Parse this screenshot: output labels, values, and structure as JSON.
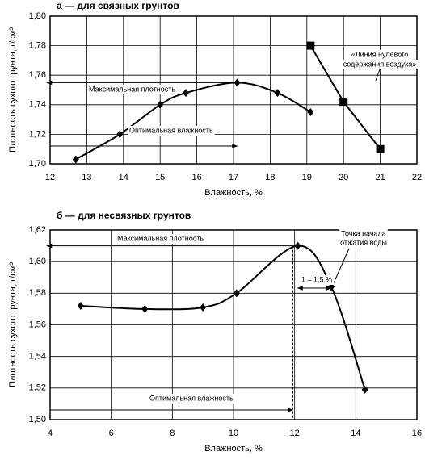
{
  "chart_data": [
    {
      "type": "line",
      "title": "а — для связных грунтов",
      "x_label": "Влажность, %",
      "y_label": "Плотность сухого грунта, г/см³",
      "xlim": [
        12,
        22
      ],
      "xticks": [
        12,
        13,
        14,
        15,
        16,
        17,
        18,
        19,
        20,
        21,
        22
      ],
      "ylim": [
        1.7,
        1.8
      ],
      "yticks": [
        {
          "value": 1.7,
          "label": "1,70"
        },
        {
          "value": 1.72,
          "label": "1,72"
        },
        {
          "value": 1.74,
          "label": "1,74"
        },
        {
          "value": 1.76,
          "label": "1,76"
        },
        {
          "value": 1.78,
          "label": "1,78"
        },
        {
          "value": 1.8,
          "label": "1,80"
        }
      ],
      "grid": true,
      "series": [
        {
          "color": "#000000",
          "marker": "diamond",
          "smooth": true,
          "x": [
            12.7,
            13.9,
            15,
            15.7,
            17.1,
            18.2,
            19.1
          ],
          "values": [
            1.703,
            1.72,
            1.74,
            1.748,
            1.755,
            1.748,
            1.735
          ]
        },
        {
          "color": "#000000",
          "marker": "square",
          "smooth": false,
          "x": [
            19.1,
            20,
            21
          ],
          "values": [
            1.78,
            1.742,
            1.71
          ]
        }
      ],
      "annotations": [
        "Максимальная плотность",
        "Оптимальная влажность",
        "«Линия нулевого",
        "содержания воздуха»"
      ]
    },
    {
      "type": "line",
      "title": "б — для несвязных грунтов",
      "x_label": "Влажность, %",
      "y_label": "Плотность сухого грунта, г/см³",
      "xlim": [
        4,
        16
      ],
      "xticks": [
        4,
        6,
        8,
        10,
        12,
        14,
        16
      ],
      "ylim": [
        1.5,
        1.62
      ],
      "yticks": [
        {
          "value": 1.5,
          "label": "1,50"
        },
        {
          "value": 1.52,
          "label": "1,52"
        },
        {
          "value": 1.54,
          "label": "1,54"
        },
        {
          "value": 1.56,
          "label": "1,56"
        },
        {
          "value": 1.58,
          "label": "1,58"
        },
        {
          "value": 1.6,
          "label": "1,60"
        },
        {
          "value": 1.62,
          "label": "1,62"
        }
      ],
      "grid": true,
      "series": [
        {
          "color": "#000000",
          "marker": "diamond",
          "smooth": true,
          "x": [
            5,
            7.1,
            9,
            10.1,
            12.1,
            13.2,
            14.3
          ],
          "values": [
            1.572,
            1.57,
            1.571,
            1.58,
            1.61,
            1.584,
            1.519
          ]
        }
      ],
      "annotations": [
        "Максимальная плотность",
        "Оптимальная влажность",
        "Точка начала",
        "отжатия воды",
        "1 – 1,5 %"
      ]
    }
  ]
}
